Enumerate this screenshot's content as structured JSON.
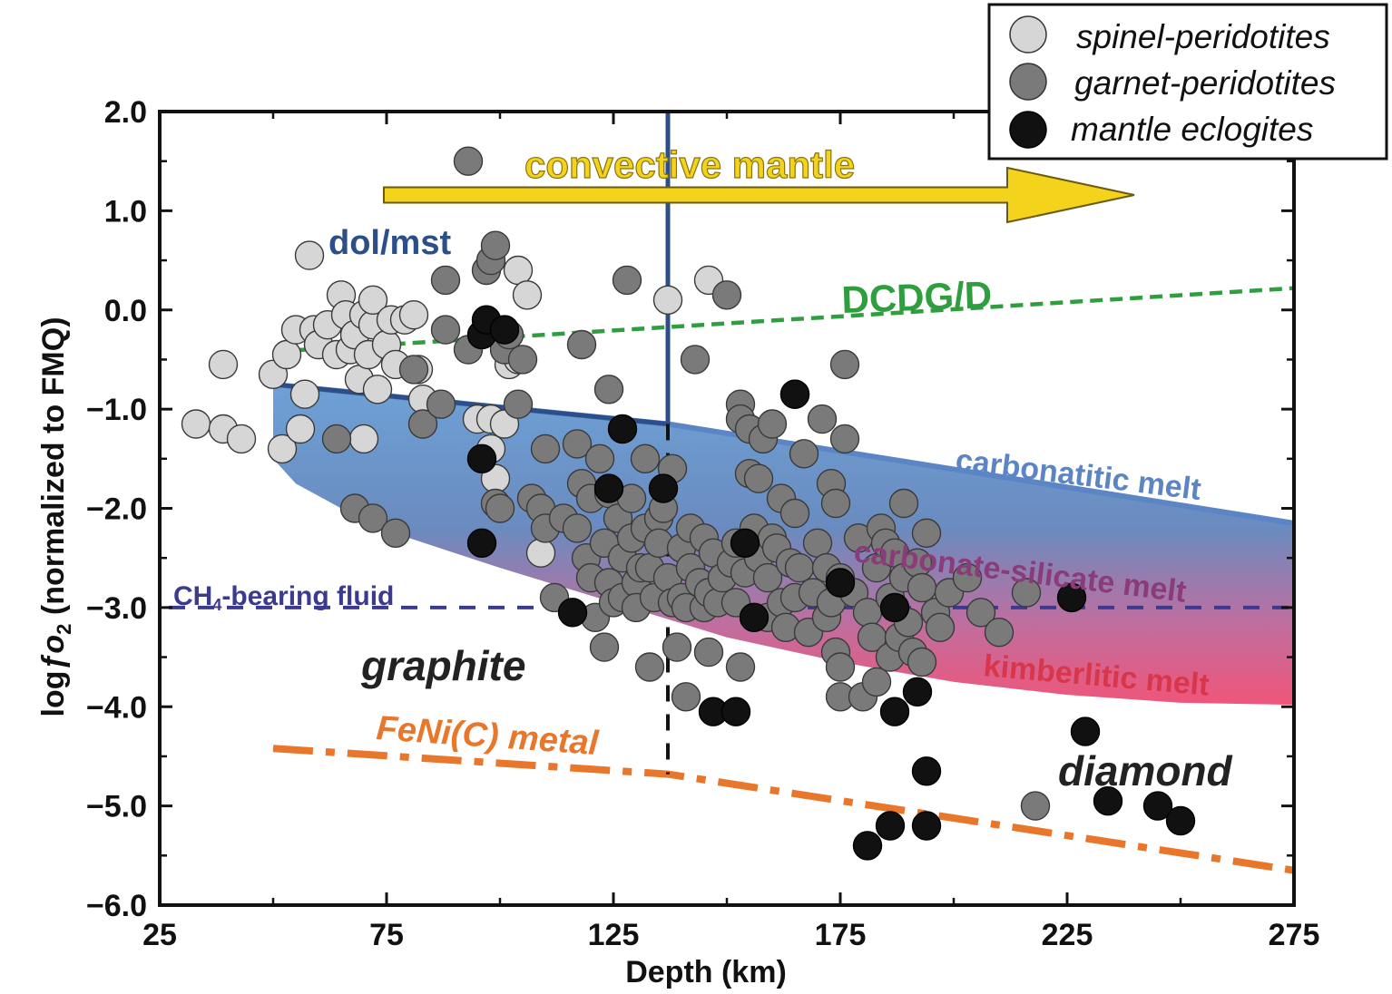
{
  "chart_data": {
    "type": "scatter",
    "xlabel": "Depth (km)",
    "ylabel": "logƒo₂ (normalized to FMQ)",
    "xlim": [
      25,
      275
    ],
    "ylim": [
      -6.0,
      2.0
    ],
    "x_ticks": [
      25,
      75,
      125,
      175,
      225,
      275
    ],
    "y_ticks": [
      2.0,
      1.0,
      0.0,
      -1.0,
      -2.0,
      -3.0,
      -4.0,
      -5.0,
      -6.0
    ],
    "y_tick_labels": [
      "2.0",
      "1.0",
      "0.0",
      "−1.0",
      "−2.0",
      "−3.0",
      "−4.0",
      "−5.0",
      "−6.0"
    ],
    "legend": {
      "placement": "top-right",
      "entries": [
        {
          "label": "spinel-peridotites",
          "color": "#d6d6d6"
        },
        {
          "label": "garnet-peridotites",
          "color": "#7a7a7a"
        },
        {
          "label": "mantle eclogites",
          "color": "#111111"
        }
      ]
    },
    "series": [
      {
        "name": "spinel-peridotites",
        "color": "#d6d6d6",
        "points": [
          [
            33,
            -1.15
          ],
          [
            39,
            -0.55
          ],
          [
            39,
            -1.2
          ],
          [
            43,
            -1.3
          ],
          [
            50,
            -0.65
          ],
          [
            52,
            -1.4
          ],
          [
            53,
            -0.45
          ],
          [
            55,
            -0.2
          ],
          [
            56,
            -1.2
          ],
          [
            57,
            -0.85
          ],
          [
            58,
            0.55
          ],
          [
            59,
            -0.2
          ],
          [
            60,
            -0.35
          ],
          [
            62,
            -0.15
          ],
          [
            64,
            -0.45
          ],
          [
            65,
            0.15
          ],
          [
            66,
            -0.05
          ],
          [
            67,
            -0.4
          ],
          [
            68,
            -0.25
          ],
          [
            69,
            -0.7
          ],
          [
            70,
            -0.05
          ],
          [
            70,
            -1.3
          ],
          [
            71,
            -0.45
          ],
          [
            72,
            -0.15
          ],
          [
            72,
            0.1
          ],
          [
            73,
            -0.8
          ],
          [
            75,
            -0.35
          ],
          [
            76,
            -0.1
          ],
          [
            77,
            -0.55
          ],
          [
            79,
            -0.1
          ],
          [
            81,
            -0.05
          ],
          [
            82,
            -0.6
          ],
          [
            83,
            -0.9
          ],
          [
            95,
            -1.1
          ],
          [
            98,
            -1.4
          ],
          [
            98,
            -1.1
          ],
          [
            99,
            -1.7
          ],
          [
            101,
            -1.15
          ],
          [
            102,
            -0.55
          ],
          [
            104,
            0.4
          ],
          [
            104,
            -0.5
          ],
          [
            106,
            0.15
          ],
          [
            109,
            -2.45
          ],
          [
            137,
            0.1
          ],
          [
            146,
            0.3
          ]
        ]
      },
      {
        "name": "garnet-peridotites",
        "color": "#7a7a7a",
        "points": [
          [
            64,
            -1.3
          ],
          [
            68,
            -2.0
          ],
          [
            72,
            -2.1
          ],
          [
            77,
            -2.25
          ],
          [
            81,
            -0.6
          ],
          [
            83,
            -1.15
          ],
          [
            87,
            -0.95
          ],
          [
            88,
            -0.2
          ],
          [
            88,
            0.3
          ],
          [
            93,
            -0.4
          ],
          [
            93,
            1.5
          ],
          [
            97,
            0.4
          ],
          [
            98,
            0.5
          ],
          [
            99,
            -1.95
          ],
          [
            99,
            0.65
          ],
          [
            100,
            -2.0
          ],
          [
            101,
            -0.4
          ],
          [
            102,
            -0.25
          ],
          [
            104,
            -0.95
          ],
          [
            105,
            -0.5
          ],
          [
            107,
            -1.9
          ],
          [
            109,
            -2.0
          ],
          [
            110,
            -2.2
          ],
          [
            110,
            -1.4
          ],
          [
            112,
            -2.9
          ],
          [
            114,
            -2.1
          ],
          [
            117,
            -2.2
          ],
          [
            117,
            -1.35
          ],
          [
            118,
            -1.75
          ],
          [
            118,
            -0.35
          ],
          [
            119,
            -2.5
          ],
          [
            120,
            -1.9
          ],
          [
            120,
            -2.7
          ],
          [
            121,
            -3.1
          ],
          [
            122,
            -1.5
          ],
          [
            123,
            -2.35
          ],
          [
            123,
            -3.4
          ],
          [
            124,
            -1.85
          ],
          [
            124,
            -2.75
          ],
          [
            124,
            -0.8
          ],
          [
            125,
            -2.95
          ],
          [
            126,
            -2.1
          ],
          [
            127,
            -2.5
          ],
          [
            127,
            -2.9
          ],
          [
            128,
            0.3
          ],
          [
            129,
            -1.9
          ],
          [
            129,
            -2.3
          ],
          [
            130,
            -2.75
          ],
          [
            130,
            -3.0
          ],
          [
            131,
            -2.6
          ],
          [
            132,
            -1.5
          ],
          [
            132,
            -2.2
          ],
          [
            133,
            -2.6
          ],
          [
            133,
            -3.6
          ],
          [
            134,
            -2.9
          ],
          [
            135,
            -2.1
          ],
          [
            135,
            -2.35
          ],
          [
            136,
            -2.0
          ],
          [
            137,
            -2.7
          ],
          [
            138,
            -2.95
          ],
          [
            138,
            -1.6
          ],
          [
            139,
            -3.4
          ],
          [
            140,
            -2.4
          ],
          [
            140,
            -2.9
          ],
          [
            141,
            -3.0
          ],
          [
            141,
            -3.9
          ],
          [
            142,
            -2.2
          ],
          [
            142,
            -2.6
          ],
          [
            143,
            -0.5
          ],
          [
            144,
            -2.75
          ],
          [
            145,
            -3.0
          ],
          [
            145,
            -2.3
          ],
          [
            146,
            -2.85
          ],
          [
            146,
            -3.45
          ],
          [
            147,
            -2.45
          ],
          [
            148,
            -2.95
          ],
          [
            149,
            -2.7
          ],
          [
            150,
            0.15
          ],
          [
            151,
            -2.55
          ],
          [
            152,
            -2.95
          ],
          [
            152,
            -2.35
          ],
          [
            153,
            -0.95
          ],
          [
            153,
            -1.1
          ],
          [
            153,
            -3.6
          ],
          [
            154,
            -2.65
          ],
          [
            155,
            -1.2
          ],
          [
            155,
            -1.65
          ],
          [
            156,
            -2.2
          ],
          [
            157,
            -2.5
          ],
          [
            157,
            -1.7
          ],
          [
            158,
            -1.3
          ],
          [
            159,
            -2.7
          ],
          [
            159,
            -3.1
          ],
          [
            160,
            -1.15
          ],
          [
            160,
            -2.3
          ],
          [
            161,
            -2.4
          ],
          [
            162,
            -1.9
          ],
          [
            162,
            -2.95
          ],
          [
            163,
            -3.2
          ],
          [
            164,
            -2.55
          ],
          [
            165,
            -2.05
          ],
          [
            165,
            -2.9
          ],
          [
            165,
            -0.85
          ],
          [
            166,
            -2.6
          ],
          [
            167,
            -1.45
          ],
          [
            168,
            -3.25
          ],
          [
            169,
            -2.85
          ],
          [
            170,
            -2.35
          ],
          [
            171,
            -1.1
          ],
          [
            172,
            -2.6
          ],
          [
            172,
            -3.1
          ],
          [
            173,
            -1.75
          ],
          [
            173,
            -2.95
          ],
          [
            174,
            -1.95
          ],
          [
            174,
            -3.45
          ],
          [
            175,
            -3.6
          ],
          [
            175,
            -2.7
          ],
          [
            175,
            -3.9
          ],
          [
            176,
            -1.3
          ],
          [
            176,
            -0.55
          ],
          [
            178,
            -2.85
          ],
          [
            179,
            -2.3
          ],
          [
            180,
            -3.9
          ],
          [
            181,
            -3.05
          ],
          [
            182,
            -3.3
          ],
          [
            183,
            -3.75
          ],
          [
            183,
            -2.6
          ],
          [
            184,
            -2.2
          ],
          [
            185,
            -2.35
          ],
          [
            186,
            -2.9
          ],
          [
            186,
            -3.5
          ],
          [
            187,
            -2.45
          ],
          [
            188,
            -3.3
          ],
          [
            189,
            -1.95
          ],
          [
            189,
            -2.7
          ],
          [
            190,
            -3.15
          ],
          [
            191,
            -3.45
          ],
          [
            192,
            -2.55
          ],
          [
            193,
            -2.8
          ],
          [
            193,
            -3.55
          ],
          [
            194,
            -2.25
          ],
          [
            196,
            -3.05
          ],
          [
            197,
            -3.2
          ],
          [
            199,
            -2.85
          ],
          [
            203,
            -2.7
          ],
          [
            206,
            -3.05
          ],
          [
            210,
            -3.25
          ],
          [
            216,
            -2.85
          ],
          [
            218,
            -5.0
          ]
        ]
      },
      {
        "name": "mantle eclogites",
        "color": "#111111",
        "points": [
          [
            96,
            -1.5
          ],
          [
            96,
            -2.35
          ],
          [
            96,
            -0.25
          ],
          [
            97,
            -0.1
          ],
          [
            101,
            -0.2
          ],
          [
            116,
            -3.05
          ],
          [
            124,
            -1.8
          ],
          [
            127,
            -1.2
          ],
          [
            136,
            -1.8
          ],
          [
            147,
            -4.05
          ],
          [
            152,
            -4.05
          ],
          [
            154,
            -2.35
          ],
          [
            156,
            -3.1
          ],
          [
            165,
            -0.85
          ],
          [
            175,
            -2.75
          ],
          [
            181,
            -5.4
          ],
          [
            186,
            -5.2
          ],
          [
            187,
            -4.05
          ],
          [
            187,
            -3.0
          ],
          [
            192,
            -3.85
          ],
          [
            194,
            -4.65
          ],
          [
            194,
            -5.2
          ],
          [
            226,
            -2.9
          ],
          [
            229,
            -4.25
          ],
          [
            234,
            -4.95
          ],
          [
            245,
            -5.0
          ],
          [
            250,
            -5.15
          ]
        ]
      }
    ],
    "lines": [
      {
        "name": "DCDG/D",
        "style": "dotted",
        "color": "#2e9e3e",
        "points": [
          [
            50,
            -0.42
          ],
          [
            275,
            0.22
          ]
        ]
      },
      {
        "name": "carbonatitic melt",
        "style": "solid",
        "color": "#5b85c5",
        "points": [
          [
            50,
            -0.75
          ],
          [
            137,
            -1.15
          ],
          [
            275,
            -2.15
          ]
        ]
      },
      {
        "name": "dol/mst",
        "style": "solid",
        "color": "#2c4f8a",
        "points": [
          [
            50,
            -0.75
          ],
          [
            137,
            -1.15
          ],
          [
            137,
            2.0
          ]
        ]
      },
      {
        "name": "CH4-bearing fluid",
        "style": "dashed",
        "color": "#3b3a8e",
        "points": [
          [
            27,
            -3.0
          ],
          [
            275,
            -3.0
          ]
        ]
      },
      {
        "name": "FeNi(C) metal",
        "style": "dash-dot",
        "color": "#e8772c",
        "points": [
          [
            50,
            -4.42
          ],
          [
            137,
            -4.68
          ],
          [
            275,
            -5.65
          ]
        ]
      },
      {
        "name": "graphite-diamond boundary",
        "style": "dashed",
        "color": "#111111",
        "points": [
          [
            137,
            -1.15
          ],
          [
            137,
            -4.68
          ]
        ]
      }
    ],
    "annotations": {
      "convective": "convective mantle",
      "dolmst": "dol/mst",
      "dcdg": "DCDG/D",
      "carbonatitic": "carbonatitic melt",
      "carbsil": "carbonate-silicate melt",
      "ch4_main": "CH",
      "ch4_sub": "4",
      "ch4_rest": "-bearing fluid",
      "kimberlitic": "kimberlitic melt",
      "graphite": "graphite",
      "fenic": "FeNi(C) metal",
      "diamond": "diamond"
    },
    "ylabel_parts": [
      "log",
      "ƒo",
      "2",
      " (normalized to FMQ)"
    ]
  }
}
